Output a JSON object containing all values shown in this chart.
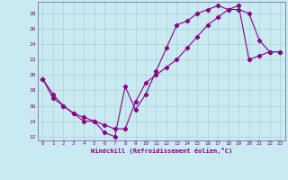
{
  "xlabel": "Windchill (Refroidissement éolien,°C)",
  "bg_color": "#c8eaf0",
  "line_color": "#880088",
  "grid_color": "#aad4d4",
  "spine_color": "#7777aa",
  "xlim": [
    -0.5,
    23.5
  ],
  "ylim": [
    11.5,
    29.5
  ],
  "yticks": [
    12,
    14,
    16,
    18,
    20,
    22,
    24,
    26,
    28
  ],
  "xticks": [
    0,
    1,
    2,
    3,
    4,
    5,
    6,
    7,
    8,
    9,
    10,
    11,
    12,
    13,
    14,
    15,
    16,
    17,
    18,
    19,
    20,
    21,
    22,
    23
  ],
  "line1_x": [
    0,
    1,
    2,
    3,
    4,
    5,
    6,
    7,
    8,
    9,
    10,
    11,
    12,
    13,
    14,
    15,
    16,
    17,
    18,
    19,
    20,
    21,
    22,
    23
  ],
  "line1_y": [
    19.5,
    17.0,
    16.0,
    15.0,
    14.0,
    14.0,
    12.5,
    12.0,
    18.5,
    15.5,
    17.5,
    20.5,
    23.5,
    26.5,
    27.0,
    28.0,
    28.5,
    29.0,
    28.5,
    28.5,
    28.0,
    24.5,
    23.0,
    23.0
  ],
  "line2_x": [
    0,
    1,
    2,
    3,
    4,
    5,
    6,
    7,
    8,
    9,
    10,
    11,
    12,
    13,
    14,
    15,
    16,
    17,
    18,
    19,
    20,
    21,
    22,
    23
  ],
  "line2_y": [
    19.5,
    17.5,
    16.0,
    15.0,
    14.5,
    14.0,
    13.5,
    13.0,
    13.0,
    16.5,
    19.0,
    20.0,
    21.0,
    22.0,
    23.5,
    25.0,
    26.5,
    27.5,
    28.5,
    29.0,
    22.0,
    22.5,
    23.0,
    23.0
  ]
}
